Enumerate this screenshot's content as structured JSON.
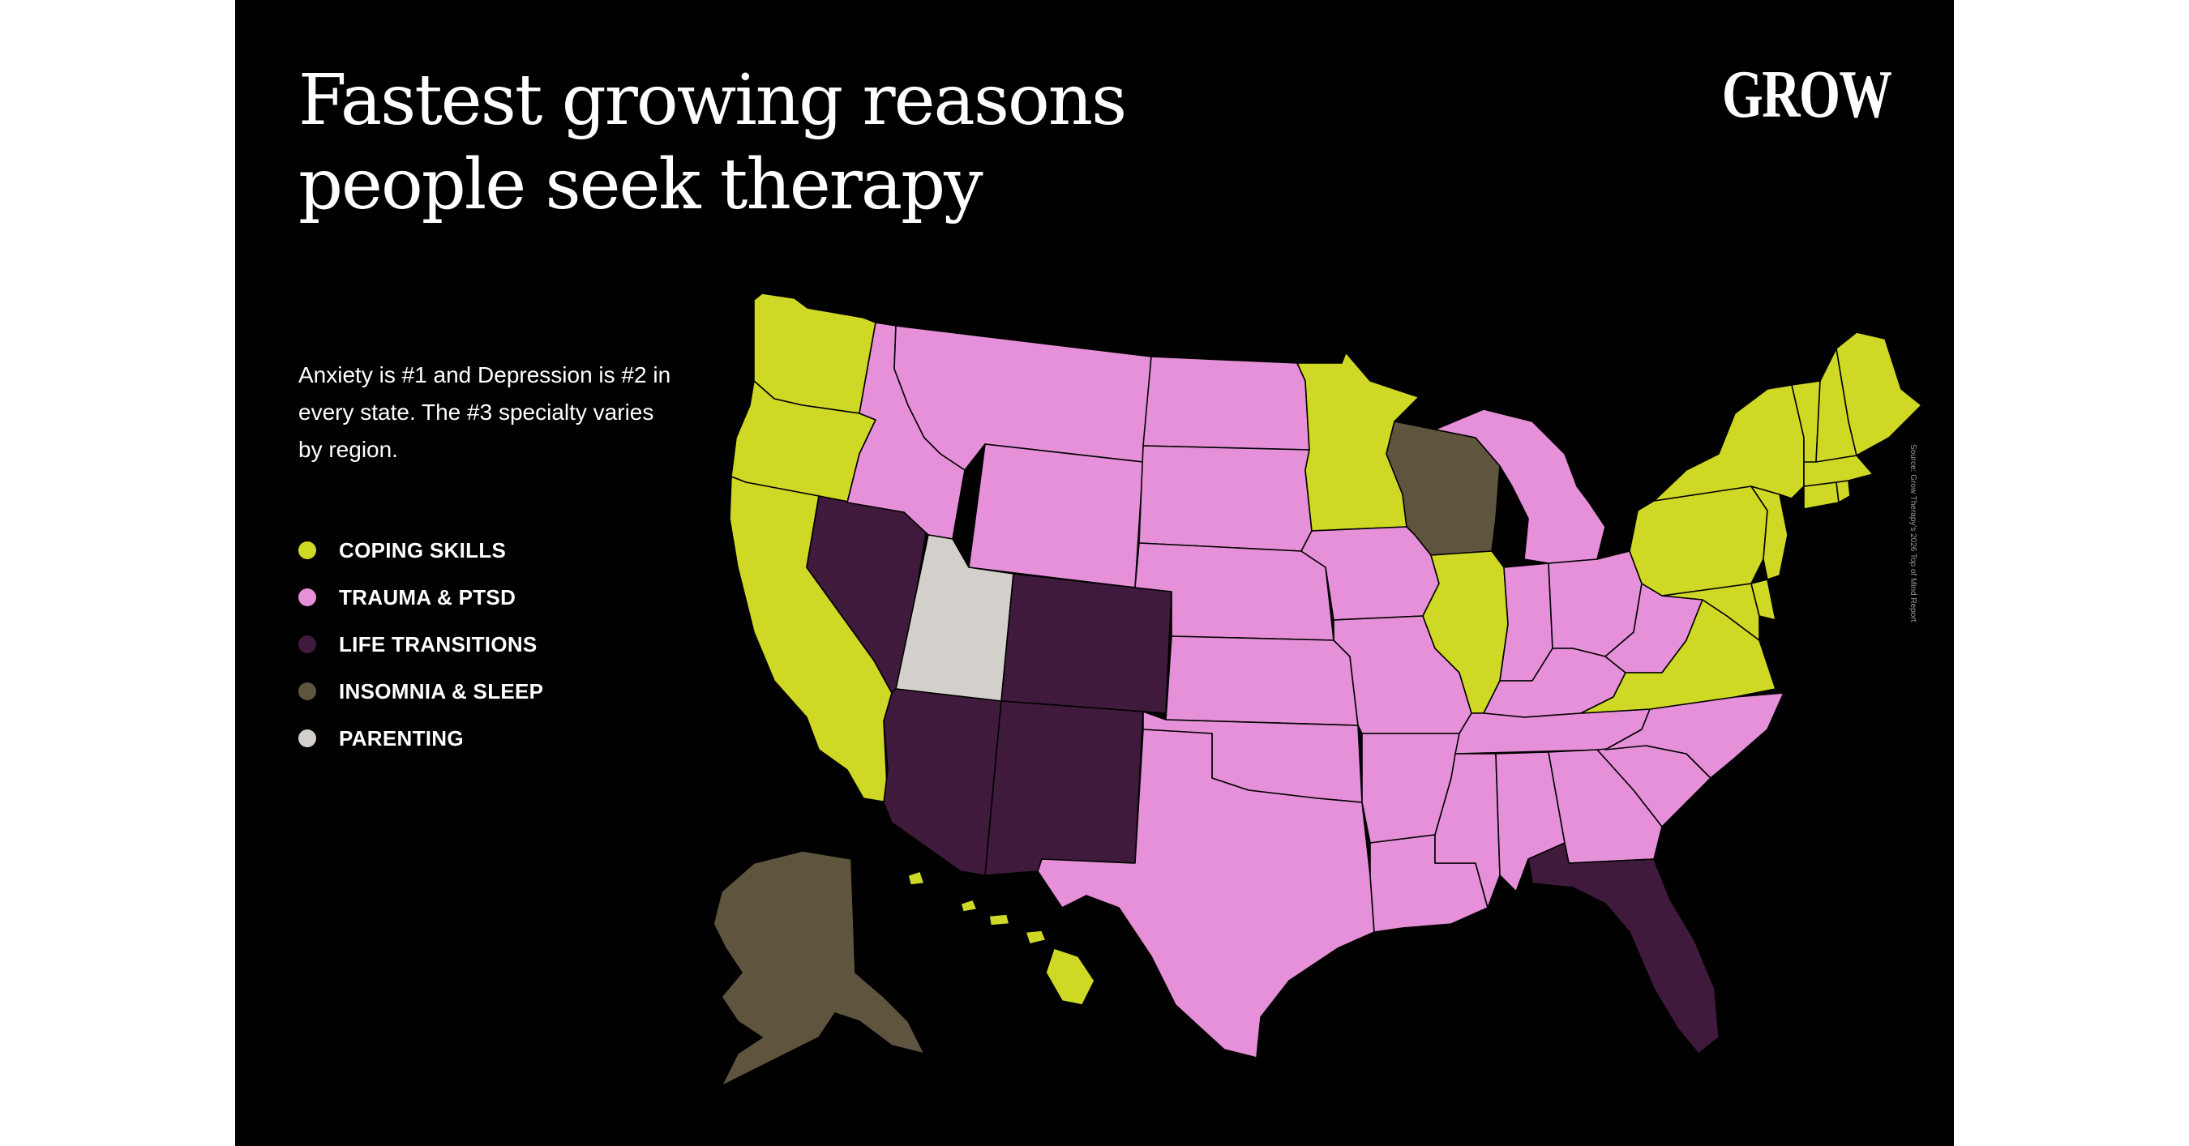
{
  "title": {
    "line1": "Fastest growing reasons",
    "line2": "people seek therapy"
  },
  "logo": "GROW",
  "intro": "Anxiety is #1 and Depression is #2 in every state. The #3 specialty varies by region.",
  "source": "Source: Grow Therapy's 2026 Top of Mind Report",
  "legend": [
    {
      "key": "coping",
      "label": "COPING SKILLS",
      "color": "#cfd825"
    },
    {
      "key": "trauma",
      "label": "TRAUMA & PTSD",
      "color": "#e590d8"
    },
    {
      "key": "life",
      "label": "LIFE TRANSITIONS",
      "color": "#3f1a3c"
    },
    {
      "key": "insomnia",
      "label": "INSOMNIA & SLEEP",
      "color": "#5f553f"
    },
    {
      "key": "parenting",
      "label": "PARENTING",
      "color": "#d3d0cc"
    }
  ],
  "map_data": {
    "type": "choropleth",
    "regions": [
      {
        "state": "Washington",
        "category": "coping"
      },
      {
        "state": "Oregon",
        "category": "coping"
      },
      {
        "state": "California",
        "category": "coping"
      },
      {
        "state": "Nevada",
        "category": "life"
      },
      {
        "state": "Idaho",
        "category": "trauma"
      },
      {
        "state": "Montana",
        "category": "trauma"
      },
      {
        "state": "Wyoming",
        "category": "trauma"
      },
      {
        "state": "Utah",
        "category": "parenting"
      },
      {
        "state": "Colorado",
        "category": "life"
      },
      {
        "state": "Arizona",
        "category": "life"
      },
      {
        "state": "New Mexico",
        "category": "life"
      },
      {
        "state": "North Dakota",
        "category": "trauma"
      },
      {
        "state": "South Dakota",
        "category": "trauma"
      },
      {
        "state": "Nebraska",
        "category": "trauma"
      },
      {
        "state": "Kansas",
        "category": "trauma"
      },
      {
        "state": "Oklahoma",
        "category": "trauma"
      },
      {
        "state": "Texas",
        "category": "trauma"
      },
      {
        "state": "Minnesota",
        "category": "coping"
      },
      {
        "state": "Iowa",
        "category": "trauma"
      },
      {
        "state": "Missouri",
        "category": "trauma"
      },
      {
        "state": "Arkansas",
        "category": "trauma"
      },
      {
        "state": "Louisiana",
        "category": "trauma"
      },
      {
        "state": "Wisconsin",
        "category": "insomnia"
      },
      {
        "state": "Illinois",
        "category": "coping"
      },
      {
        "state": "Michigan",
        "category": "trauma"
      },
      {
        "state": "Indiana",
        "category": "trauma"
      },
      {
        "state": "Ohio",
        "category": "trauma"
      },
      {
        "state": "Kentucky",
        "category": "trauma"
      },
      {
        "state": "Tennessee",
        "category": "trauma"
      },
      {
        "state": "Mississippi",
        "category": "trauma"
      },
      {
        "state": "Alabama",
        "category": "trauma"
      },
      {
        "state": "Georgia",
        "category": "trauma"
      },
      {
        "state": "Florida",
        "category": "life"
      },
      {
        "state": "South Carolina",
        "category": "trauma"
      },
      {
        "state": "North Carolina",
        "category": "trauma"
      },
      {
        "state": "Virginia",
        "category": "coping"
      },
      {
        "state": "West Virginia",
        "category": "trauma"
      },
      {
        "state": "Maryland",
        "category": "coping"
      },
      {
        "state": "Delaware",
        "category": "coping"
      },
      {
        "state": "Pennsylvania",
        "category": "coping"
      },
      {
        "state": "New Jersey",
        "category": "coping"
      },
      {
        "state": "New York",
        "category": "coping"
      },
      {
        "state": "Connecticut",
        "category": "coping"
      },
      {
        "state": "Rhode Island",
        "category": "coping"
      },
      {
        "state": "Massachusetts",
        "category": "coping"
      },
      {
        "state": "Vermont",
        "category": "coping"
      },
      {
        "state": "New Hampshire",
        "category": "coping"
      },
      {
        "state": "Maine",
        "category": "coping"
      },
      {
        "state": "Alaska",
        "category": "insomnia"
      },
      {
        "state": "Hawaii",
        "category": "coping"
      }
    ]
  }
}
